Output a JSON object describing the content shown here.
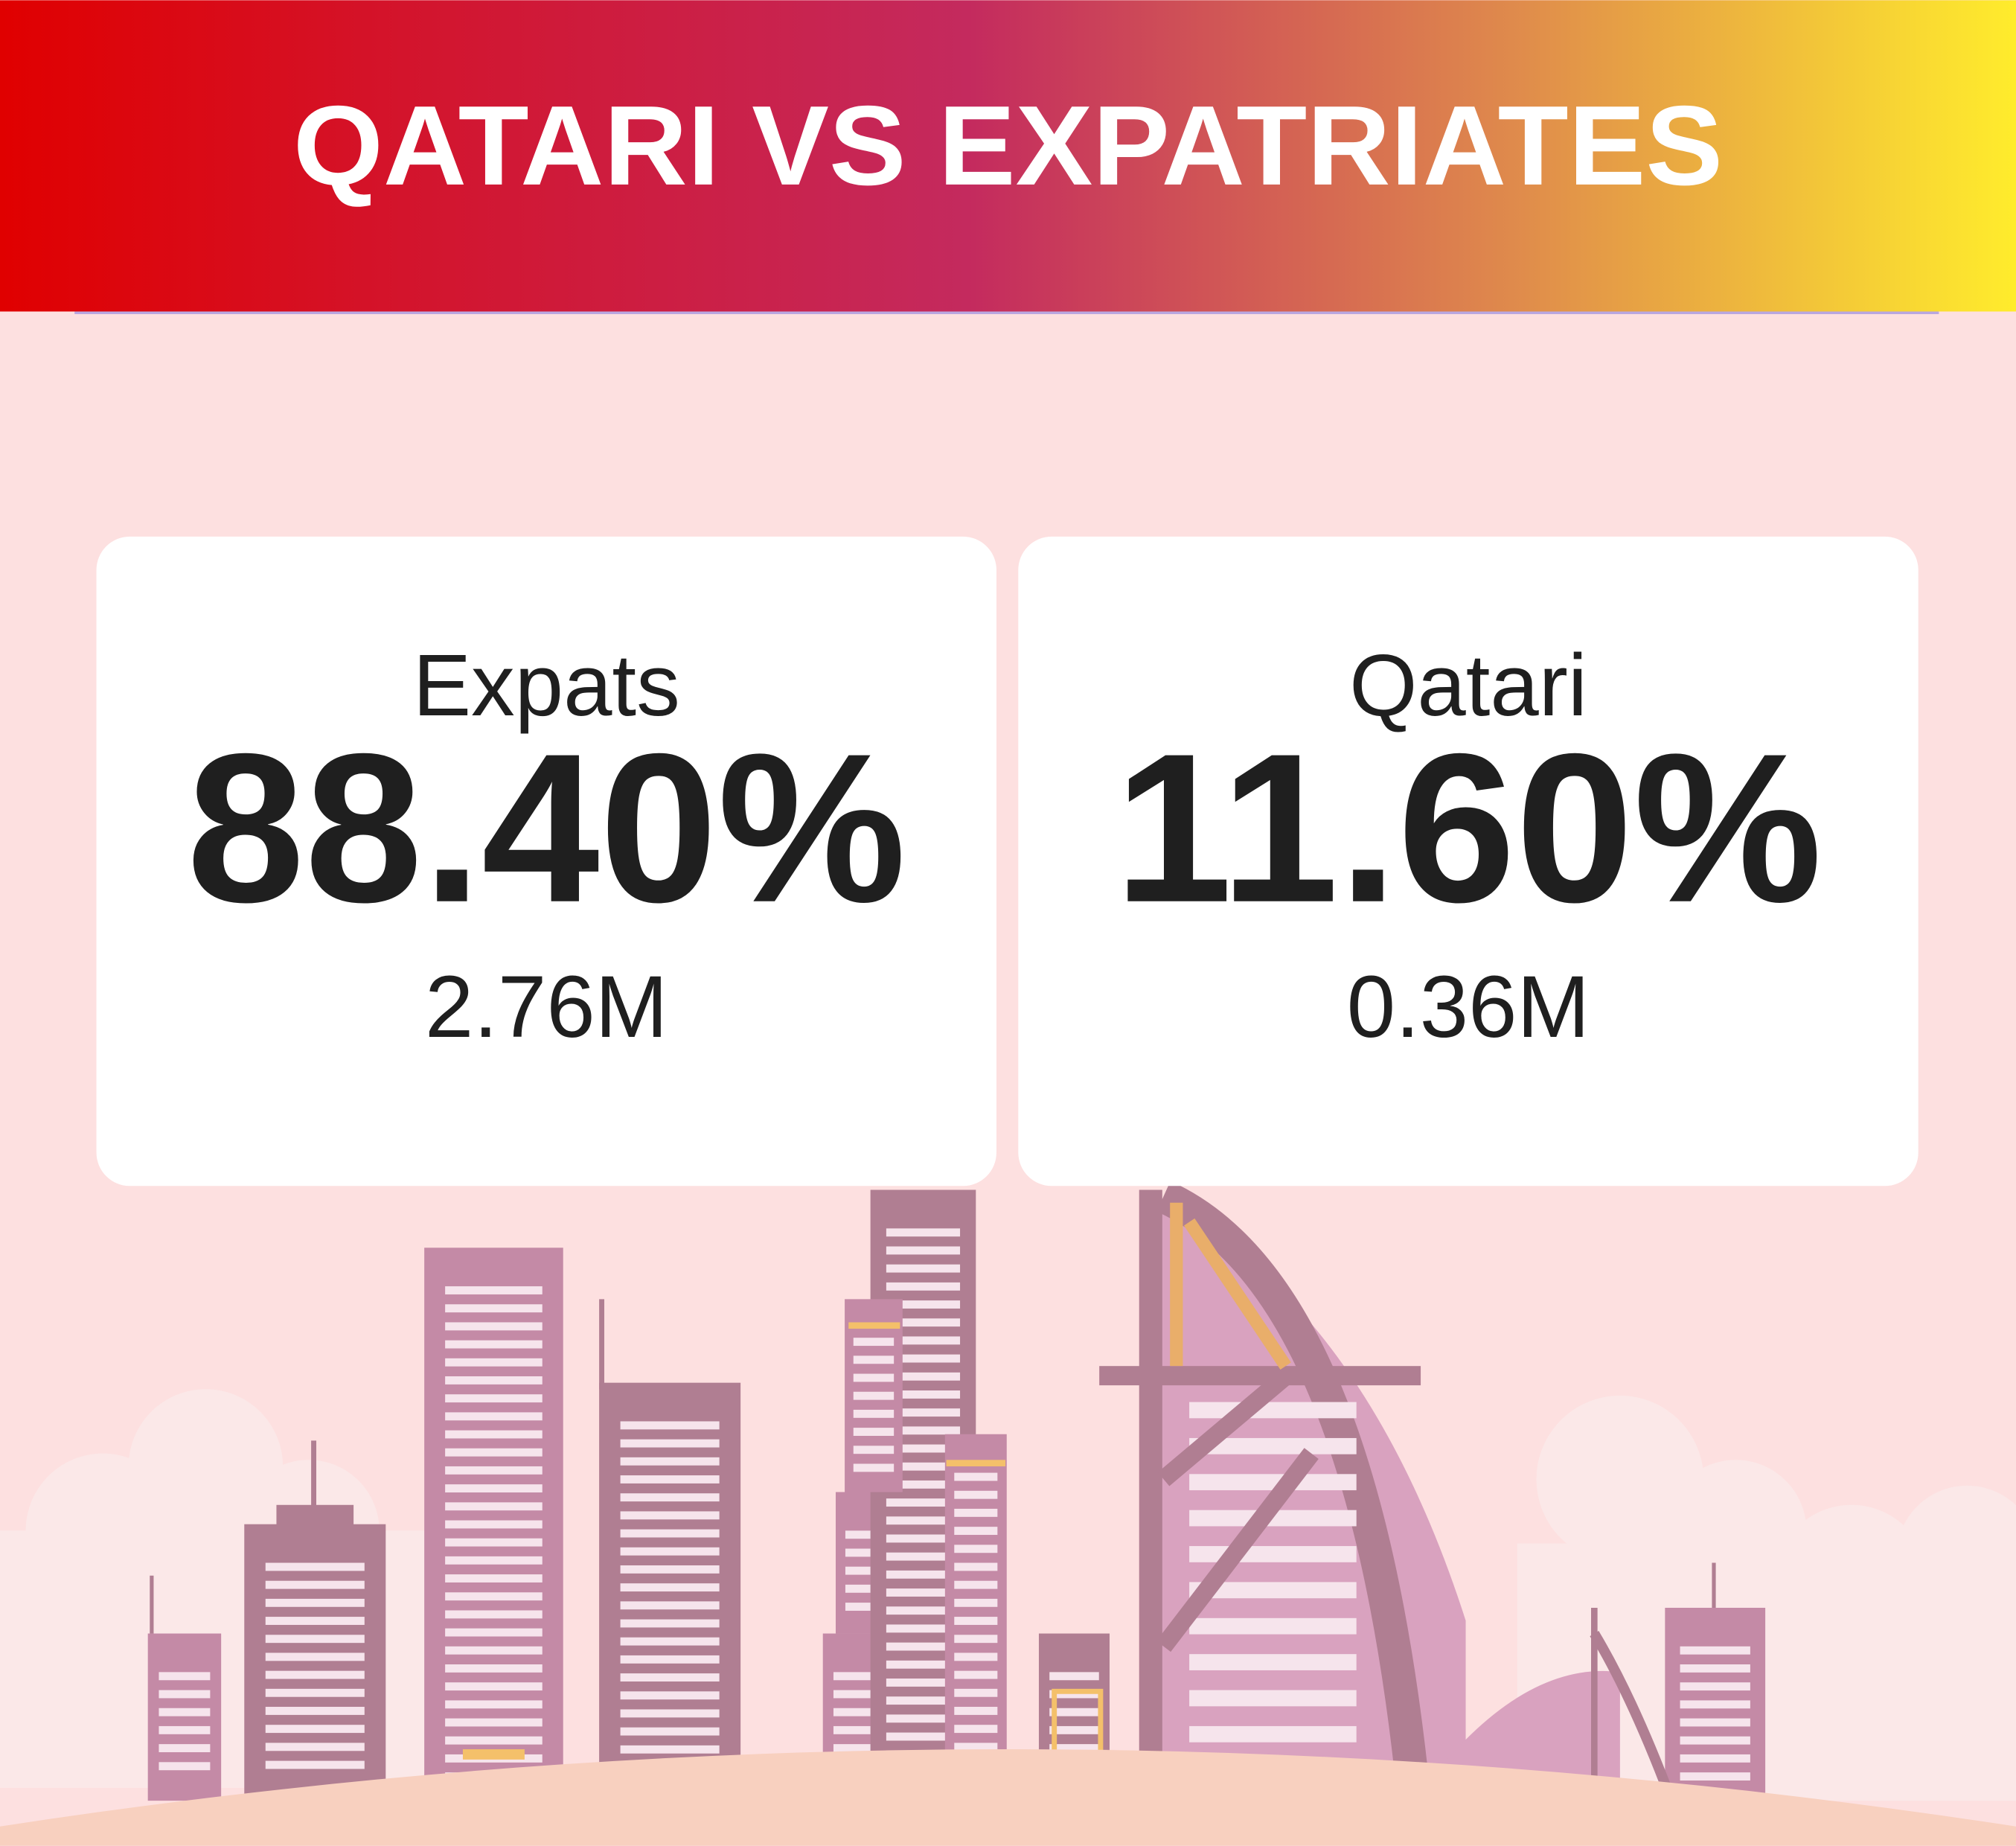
{
  "header": {
    "title": "QATARI VS EXPATRIATES"
  },
  "cards": [
    {
      "label": "Expats",
      "percent": "88.40%",
      "population": "2.76M"
    },
    {
      "label": "Qatari",
      "percent": "11.60%",
      "population": "0.36M"
    }
  ]
}
